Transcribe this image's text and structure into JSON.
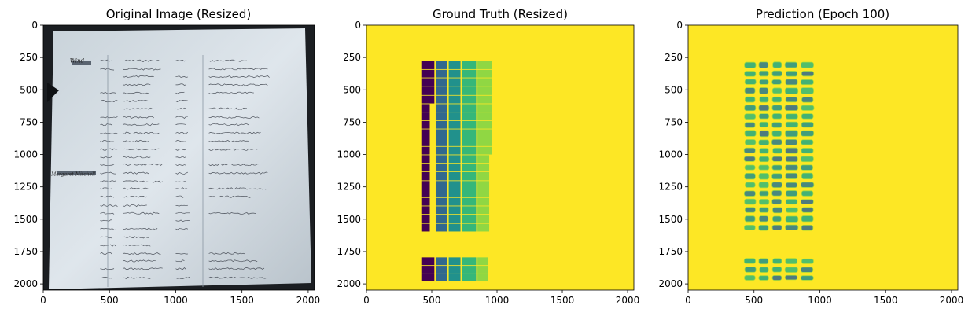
{
  "figure": {
    "colors": {
      "background": "#ffffff",
      "viridis_yellow": "#fde725",
      "viridis_purple": "#440154",
      "viridis_blue": "#31688e",
      "viridis_teal": "#21918c",
      "viridis_green": "#35b779",
      "viridis_lightgreen": "#90d743"
    }
  },
  "chart_data": [
    {
      "type": "heatmap",
      "title": "Original Image (Resized)",
      "xlim": [
        0,
        2048
      ],
      "ylim": [
        2048,
        0
      ],
      "xticks": [
        0,
        500,
        1000,
        1500,
        2000
      ],
      "yticks": [
        0,
        250,
        500,
        750,
        1000,
        1250,
        1500,
        1750,
        2000
      ],
      "content": "photo",
      "row_text": {
        "header_left": "Wind",
        "marginal_note": "Margaret Mitchell"
      }
    },
    {
      "type": "heatmap",
      "title": "Ground Truth (Resized)",
      "xlim": [
        0,
        2048
      ],
      "ylim": [
        2048,
        0
      ],
      "xticks": [
        0,
        500,
        1000,
        1500,
        2000
      ],
      "yticks": [
        0,
        250,
        500,
        750,
        1000,
        1250,
        1500,
        1750,
        2000
      ],
      "colormap": "viridis",
      "background_value": "yellow",
      "columns": [
        {
          "x0": 420,
          "x1": 520,
          "color": "purple"
        },
        {
          "x0": 530,
          "x1": 620,
          "color": "blue"
        },
        {
          "x0": 630,
          "x1": 720,
          "color": "teal"
        },
        {
          "x0": 730,
          "x1": 840,
          "color": "green"
        },
        {
          "x0": 850,
          "x1": 960,
          "color": "lightgreen"
        }
      ],
      "row_bands": [
        [
          275,
          340
        ],
        [
          345,
          405
        ],
        [
          410,
          470
        ],
        [
          475,
          540
        ],
        [
          545,
          605
        ],
        [
          610,
          670
        ],
        [
          675,
          735
        ],
        [
          740,
          800
        ],
        [
          805,
          870
        ],
        [
          875,
          935
        ],
        [
          940,
          1000
        ],
        [
          1005,
          1065
        ],
        [
          1070,
          1130
        ],
        [
          1135,
          1200
        ],
        [
          1205,
          1265
        ],
        [
          1270,
          1330
        ],
        [
          1335,
          1395
        ],
        [
          1400,
          1460
        ],
        [
          1465,
          1530
        ],
        [
          1535,
          1595
        ],
        [
          1795,
          1855
        ],
        [
          1860,
          1920
        ],
        [
          1925,
          1980
        ]
      ]
    },
    {
      "type": "heatmap",
      "title": "Prediction (Epoch 100)",
      "xlim": [
        0,
        2048
      ],
      "ylim": [
        2048,
        0
      ],
      "xticks": [
        0,
        500,
        1000,
        1500,
        2000
      ],
      "yticks": [
        0,
        250,
        500,
        750,
        1000,
        1250,
        1500,
        1750,
        2000
      ],
      "colormap": "viridis",
      "background_value": "yellow",
      "prediction_region": {
        "x0": 400,
        "x1": 990,
        "y0": 270,
        "y1": 1985
      }
    }
  ]
}
